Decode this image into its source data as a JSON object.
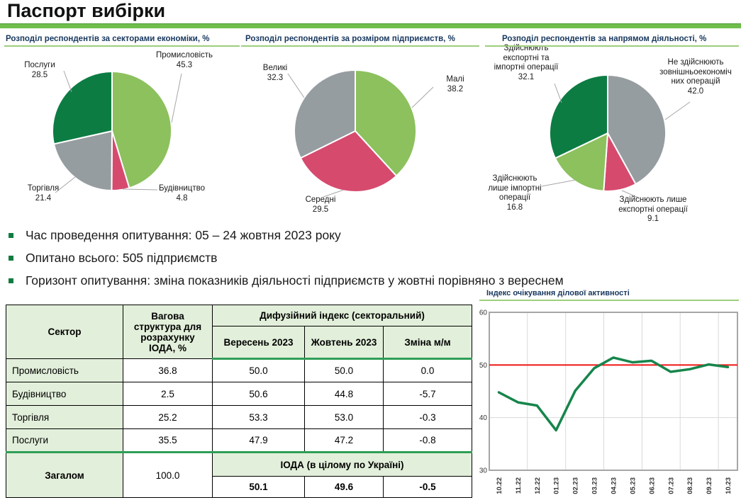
{
  "title": "Паспорт вибірки",
  "bullets": [
    "Час проведення опитування: 05 – 24 жовтня 2023 року",
    "Опитано всього: 505 підприємств",
    "Горизонт опитування: зміна показників діяльності підприємств у жовтні порівняно з вереснем"
  ],
  "chart_data": [
    {
      "type": "pie",
      "title": "Розподіл респондентів за секторами економіки, %",
      "slices": [
        {
          "label": "Промисловість",
          "value": 45.3,
          "display": "45.3",
          "color": "#8CC15E"
        },
        {
          "label": "Будівництво",
          "value": 4.8,
          "display": "4.8",
          "color": "#D64A6E"
        },
        {
          "label": "Торгівля",
          "value": 21.4,
          "display": "21.4",
          "color": "#969DA1"
        },
        {
          "label": "Послуги",
          "value": 28.5,
          "display": "28.5",
          "color": "#0C7C43"
        }
      ]
    },
    {
      "type": "pie",
      "title": "Розподіл респондентів за розміром підприємств, %",
      "slices": [
        {
          "label": "Малі",
          "value": 38.2,
          "display": "38.2",
          "color": "#8CC15E"
        },
        {
          "label": "Середні",
          "value": 29.5,
          "display": "29.5",
          "color": "#D64A6E"
        },
        {
          "label": "Великі",
          "value": 32.3,
          "display": "32.3",
          "color": "#969DA1"
        }
      ]
    },
    {
      "type": "pie",
      "title": "Розподіл респондентів за напрямом діяльності, %",
      "slices": [
        {
          "label": "Не здійснюють зовнішньоекономічних операцій",
          "value": 42.0,
          "display": "42.0",
          "color": "#969DA1"
        },
        {
          "label": "Здійснюють лише експортні операції",
          "value": 9.1,
          "display": "9.1",
          "color": "#D64A6E"
        },
        {
          "label": "Здійснюють лише імпортні операції",
          "value": 16.8,
          "display": "16.8",
          "color": "#8CC15E"
        },
        {
          "label": "Здійснюють експортні та імпортні операції",
          "value": 32.1,
          "display": "32.1",
          "color": "#0C7C43"
        }
      ]
    },
    {
      "type": "line",
      "title": "Індекс очікування ділової активності",
      "x": [
        "10.22",
        "11.22",
        "12.22",
        "01.23",
        "02.23",
        "03.23",
        "04.23",
        "05.23",
        "06.23",
        "07.23",
        "08.23",
        "09.23",
        "10.23"
      ],
      "values": [
        44.8,
        42.9,
        42.3,
        37.6,
        45.1,
        49.4,
        51.4,
        50.5,
        50.8,
        48.7,
        49.2,
        50.1,
        49.6
      ],
      "ylim": [
        30,
        60
      ],
      "yticks": [
        60,
        50,
        40,
        30
      ],
      "baseline": 50,
      "line_color": "#16854B",
      "baseline_color": "#F01414",
      "grid": true,
      "legend": "none"
    }
  ],
  "table": {
    "col_sector": "Сектор",
    "col_weight": "Вагова структура для розрахунку ІОДА, %",
    "col_diffusion": "Дифузійний індекс (секторальний)",
    "col_sep": "Вересень 2023",
    "col_oct": "Жовтень 2023",
    "col_chg": "Зміна м/м",
    "rows": [
      {
        "sector": "Промисловість",
        "weight": "36.8",
        "sep": "50.0",
        "oct": "50.0",
        "chg": "0.0"
      },
      {
        "sector": "Будівництво",
        "weight": "2.5",
        "sep": "50.6",
        "oct": "44.8",
        "chg": "-5.7"
      },
      {
        "sector": "Торгівля",
        "weight": "25.2",
        "sep": "53.3",
        "oct": "53.0",
        "chg": "-0.3"
      },
      {
        "sector": "Послуги",
        "weight": "35.5",
        "sep": "47.9",
        "oct": "47.2",
        "chg": "-0.8"
      }
    ],
    "total": {
      "label": "Загалом",
      "weight": "100.0",
      "ioda": "ІОДА (в цілому по Україні)",
      "sep": "50.1",
      "oct": "49.6",
      "chg": "-0.5"
    }
  },
  "colors": {
    "accent_bar": "#6FBE4C",
    "chart_title": "#17375E",
    "title_underline": "#9DCE7C",
    "table_header_bg": "#E2EFDA",
    "table_green_line": "#2F9E57",
    "bullet_square": "#107C41"
  }
}
